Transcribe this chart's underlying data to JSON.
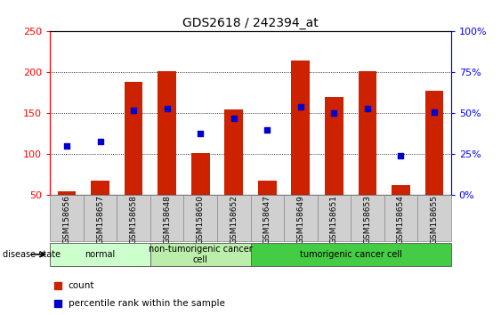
{
  "title": "GDS2618 / 242394_at",
  "samples": [
    "GSM158656",
    "GSM158657",
    "GSM158658",
    "GSM158648",
    "GSM158650",
    "GSM158652",
    "GSM158647",
    "GSM158649",
    "GSM158651",
    "GSM158653",
    "GSM158654",
    "GSM158655"
  ],
  "count_values": [
    55,
    68,
    188,
    202,
    102,
    155,
    68,
    215,
    170,
    202,
    63,
    178
  ],
  "percentile_values": [
    30,
    33,
    52,
    53,
    38,
    47,
    40,
    54,
    50,
    53,
    24,
    51
  ],
  "groups": [
    {
      "label": "normal",
      "start": 0,
      "end": 3,
      "color": "#ccffcc"
    },
    {
      "label": "non-tumorigenic cancer\ncell",
      "start": 3,
      "end": 6,
      "color": "#bbeeaa"
    },
    {
      "label": "tumorigenic cancer cell",
      "start": 6,
      "end": 12,
      "color": "#44cc44"
    }
  ],
  "bar_color": "#cc2200",
  "dot_color": "#0000cc",
  "ylim_left": [
    50,
    250
  ],
  "ylim_right": [
    0,
    100
  ],
  "yticks_left": [
    50,
    100,
    150,
    200,
    250
  ],
  "ytick_labels_left": [
    "50",
    "100",
    "150",
    "200",
    "250"
  ],
  "yticks_right": [
    0,
    25,
    50,
    75,
    100
  ],
  "ytick_labels_right": [
    "0%",
    "25%",
    "50%",
    "75%",
    "100%"
  ],
  "grid_values": [
    100,
    150,
    200
  ],
  "background_color": "white",
  "bar_width": 0.55,
  "legend_count_label": "count",
  "legend_pct_label": "percentile rank within the sample",
  "disease_state_label": "disease state"
}
